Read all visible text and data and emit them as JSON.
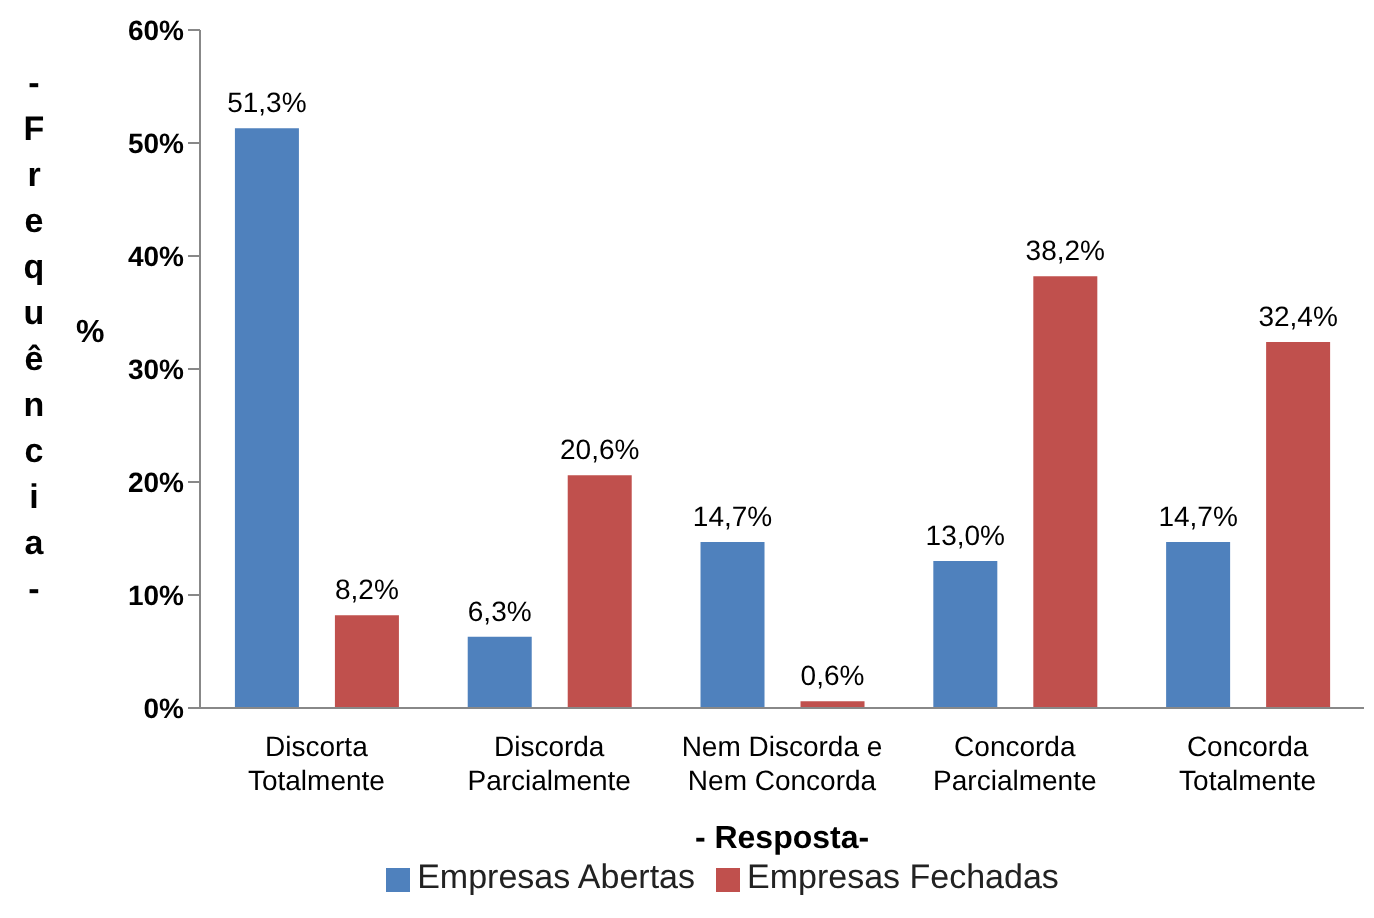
{
  "chart_data": {
    "type": "bar",
    "xlabel": "- Resposta-",
    "ylabel": "- Frequência -",
    "annotations": [
      "%"
    ],
    "categories": [
      "Discorta Totalmente",
      "Discorda Parcialmente",
      "Nem Discorda e Nem Concorda",
      "Concorda Parcialmente",
      "Concorda Totalmente"
    ],
    "series": [
      {
        "name": "Empresas Abertas",
        "color": "#4f81bd",
        "values": [
          51.3,
          6.3,
          14.7,
          13.0,
          14.7
        ],
        "value_labels": [
          "51,3%",
          "6,3%",
          "14,7%",
          "13,0%",
          "14,7%"
        ]
      },
      {
        "name": "Empresas Fechadas",
        "color": "#c0504d",
        "values": [
          8.2,
          20.6,
          0.6,
          38.2,
          32.4
        ],
        "value_labels": [
          "8,2%",
          "20,6%",
          "0,6%",
          "38,2%",
          "32,4%"
        ]
      }
    ],
    "ylim": [
      0,
      60
    ],
    "yticks": [
      {
        "value": 0,
        "label": "0%"
      },
      {
        "value": 10,
        "label": "10%"
      },
      {
        "value": 20,
        "label": "20%"
      },
      {
        "value": 30,
        "label": "30%"
      },
      {
        "value": 40,
        "label": "40%"
      },
      {
        "value": 50,
        "label": "50%"
      },
      {
        "value": 60,
        "label": "60%"
      }
    ],
    "legend": "bottom"
  }
}
